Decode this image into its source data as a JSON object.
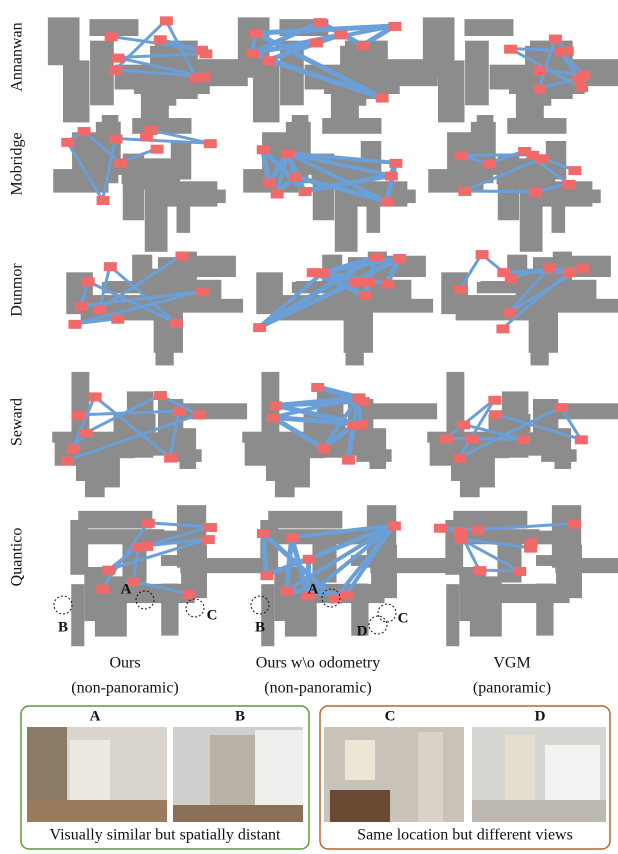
{
  "rows": [
    "Annanwan",
    "Mobridge",
    "Dunmor",
    "Seward",
    "Quantico"
  ],
  "columns": [
    {
      "line1": "Ours",
      "line2": "(non-panoramic)"
    },
    {
      "line1": "Ours w\\o odometry",
      "line2": "(non-panoramic)"
    },
    {
      "line1": "VGM",
      "line2": "(panoramic)"
    }
  ],
  "markers": {
    "ours": [
      "A",
      "B",
      "C"
    ],
    "ours_no_odometry": [
      "A",
      "B",
      "C",
      "D"
    ]
  },
  "panels": [
    {
      "labels": [
        "A",
        "B"
      ],
      "caption": "Visually similar but spatially distant"
    },
    {
      "labels": [
        "C",
        "D"
      ],
      "caption": "Same location but different views"
    }
  ]
}
